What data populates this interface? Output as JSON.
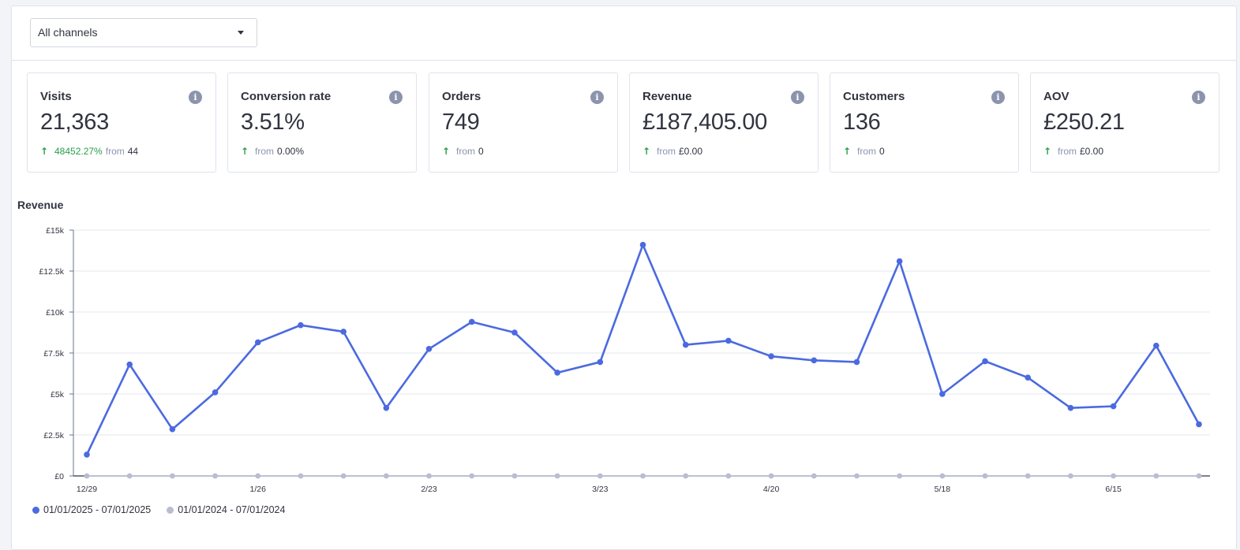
{
  "filter": {
    "selected": "All channels"
  },
  "cards": [
    {
      "title": "Visits",
      "value": "21,363",
      "pct": "48452.27%",
      "from_label": "from",
      "from_value": "44"
    },
    {
      "title": "Conversion rate",
      "value": "3.51%",
      "pct": "",
      "from_label": "from",
      "from_value": "0.00%"
    },
    {
      "title": "Orders",
      "value": "749",
      "pct": "",
      "from_label": "from",
      "from_value": "0"
    },
    {
      "title": "Revenue",
      "value": "£187,405.00",
      "pct": "",
      "from_label": "from",
      "from_value": "£0.00"
    },
    {
      "title": "Customers",
      "value": "136",
      "pct": "",
      "from_label": "from",
      "from_value": "0"
    },
    {
      "title": "AOV",
      "value": "£250.21",
      "pct": "",
      "from_label": "from",
      "from_value": "£0.00"
    }
  ],
  "info_icon": "info-icon",
  "arrow_icon": "arrow-up-icon",
  "colors": {
    "primary": "#4b6ae0",
    "comparison": "#b8bdd0",
    "positive": "#2a9d4a"
  },
  "chart_data": {
    "type": "line",
    "title": "Revenue",
    "ylim": [
      0,
      15000
    ],
    "yticks": [
      0,
      2500,
      5000,
      7500,
      10000,
      12500,
      15000
    ],
    "ytick_labels": [
      "£0",
      "£2.5k",
      "£5k",
      "£7.5k",
      "£10k",
      "£12.5k",
      "£15k"
    ],
    "xtick_labels": [
      {
        "index": 0,
        "label": "12/29"
      },
      {
        "index": 4,
        "label": "1/26"
      },
      {
        "index": 8,
        "label": "2/23"
      },
      {
        "index": 12,
        "label": "3/23"
      },
      {
        "index": 16,
        "label": "4/20"
      },
      {
        "index": 20,
        "label": "5/18"
      },
      {
        "index": 24,
        "label": "6/15"
      }
    ],
    "grid": true,
    "legend_position": "bottom-left",
    "series": [
      {
        "name": "01/01/2025 - 07/01/2025",
        "values": [
          1300,
          6800,
          2850,
          5100,
          8150,
          9200,
          8800,
          4150,
          7750,
          9400,
          8750,
          6300,
          6950,
          14100,
          8000,
          8250,
          7300,
          7050,
          6950,
          13100,
          5000,
          7000,
          6000,
          4150,
          4250,
          7950,
          3150
        ]
      },
      {
        "name": "01/01/2024 - 07/01/2024",
        "values": [
          0,
          0,
          0,
          0,
          0,
          0,
          0,
          0,
          0,
          0,
          0,
          0,
          0,
          0,
          0,
          0,
          0,
          0,
          0,
          0,
          0,
          0,
          0,
          0,
          0,
          0,
          0
        ]
      }
    ]
  }
}
